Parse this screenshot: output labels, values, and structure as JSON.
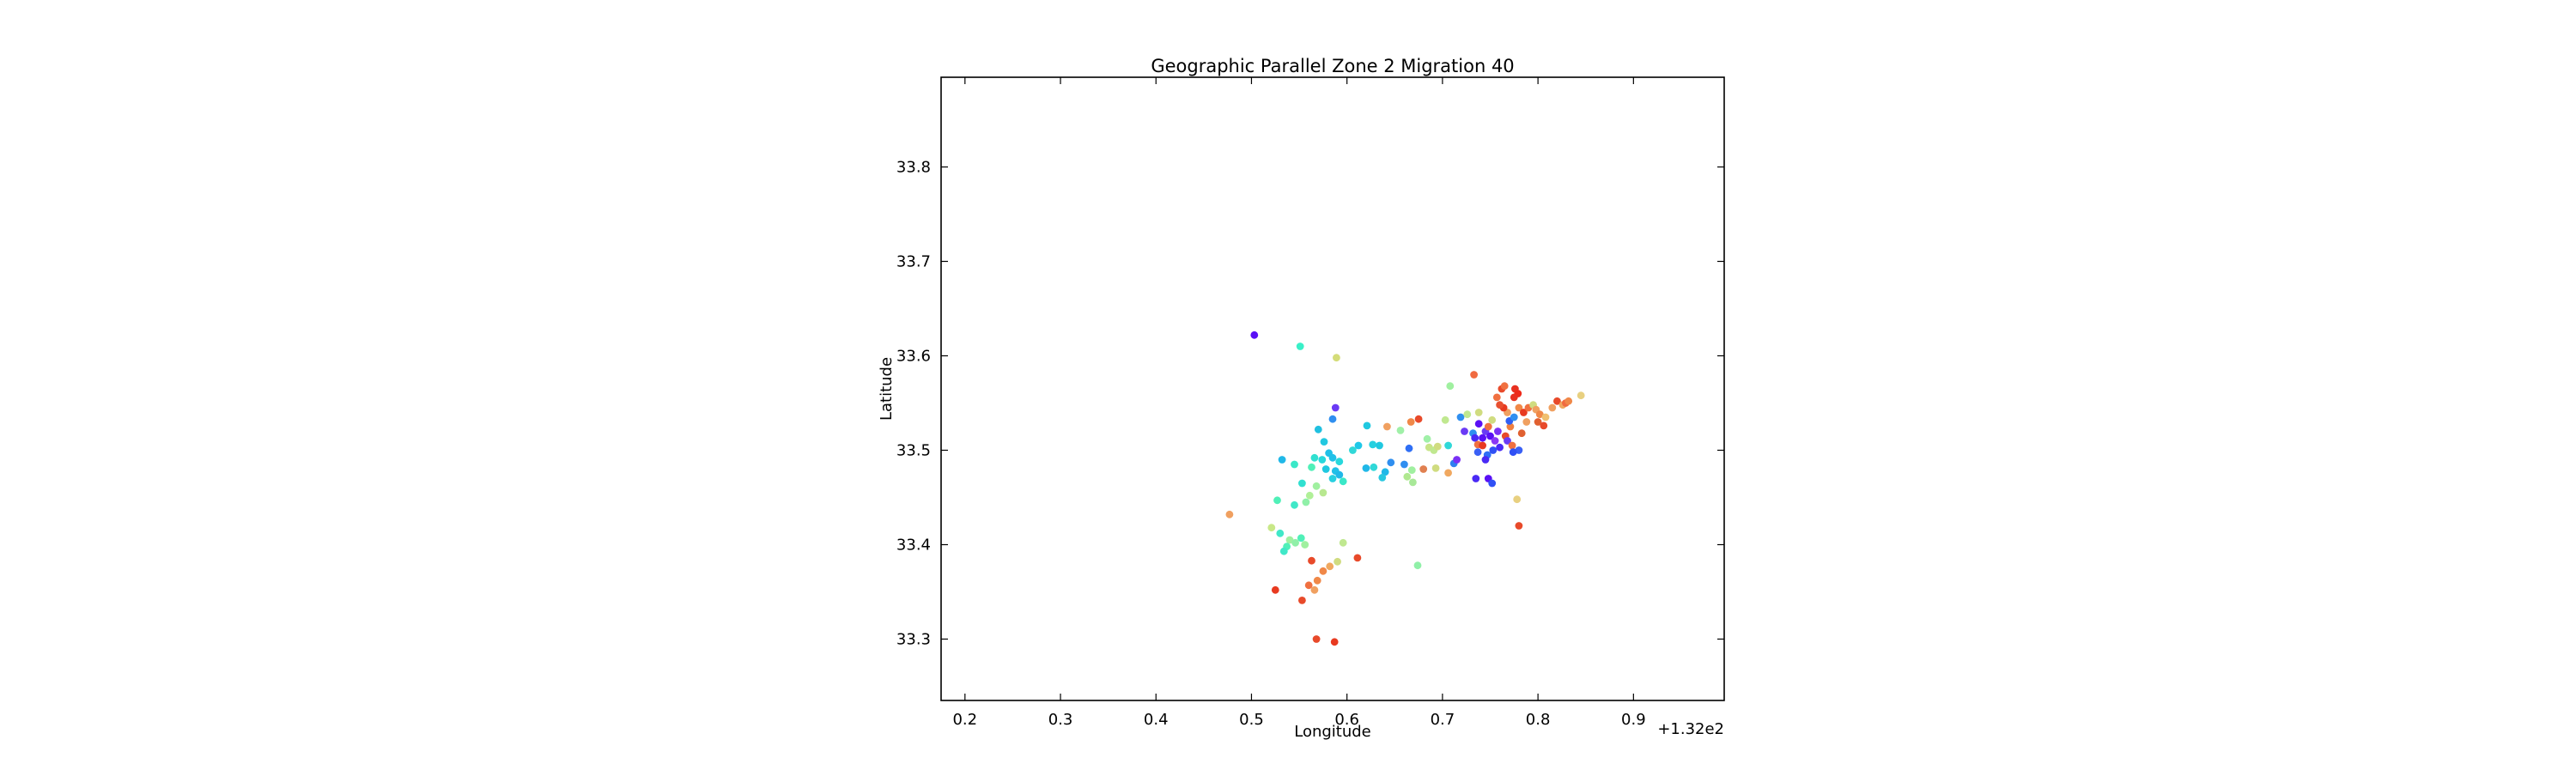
{
  "chart_data": {
    "type": "scatter",
    "title": "Geographic Parallel Zone 2 Migration 40",
    "xlabel": "Longitude",
    "ylabel": "Latitude",
    "x_offset_label": "+1.32e2",
    "xlim": [
      0.175,
      0.995
    ],
    "ylim": [
      33.235,
      33.895
    ],
    "xticks": [
      0.2,
      0.3,
      0.4,
      0.5,
      0.6,
      0.7,
      0.8,
      0.9
    ],
    "xtick_labels": [
      "0.2",
      "0.3",
      "0.4",
      "0.5",
      "0.6",
      "0.7",
      "0.8",
      "0.9"
    ],
    "yticks": [
      33.3,
      33.4,
      33.5,
      33.6,
      33.7,
      33.8
    ],
    "ytick_labels": [
      "33.3",
      "33.4",
      "33.5",
      "33.6",
      "33.7",
      "33.8"
    ],
    "grid": false,
    "legend": null,
    "colormap": "rainbow",
    "points": [
      {
        "x": 0.503,
        "y": 33.622,
        "color": "#5a10f5"
      },
      {
        "x": 0.551,
        "y": 33.61,
        "color": "#3af0c8"
      },
      {
        "x": 0.589,
        "y": 33.598,
        "color": "#d4dc78"
      },
      {
        "x": 0.588,
        "y": 33.545,
        "color": "#6a3af5"
      },
      {
        "x": 0.585,
        "y": 33.533,
        "color": "#2f8ff0"
      },
      {
        "x": 0.621,
        "y": 33.526,
        "color": "#20c8e0"
      },
      {
        "x": 0.642,
        "y": 33.525,
        "color": "#f0a060"
      },
      {
        "x": 0.656,
        "y": 33.521,
        "color": "#a0f0a8"
      },
      {
        "x": 0.667,
        "y": 33.53,
        "color": "#f08848"
      },
      {
        "x": 0.675,
        "y": 33.533,
        "color": "#e84a2a"
      },
      {
        "x": 0.57,
        "y": 33.522,
        "color": "#20c0e0"
      },
      {
        "x": 0.612,
        "y": 33.505,
        "color": "#1ec8e8"
      },
      {
        "x": 0.627,
        "y": 33.506,
        "color": "#26d0e0"
      },
      {
        "x": 0.634,
        "y": 33.505,
        "color": "#20c8e0"
      },
      {
        "x": 0.606,
        "y": 33.5,
        "color": "#30d8d8"
      },
      {
        "x": 0.576,
        "y": 33.509,
        "color": "#22c8e0"
      },
      {
        "x": 0.581,
        "y": 33.497,
        "color": "#20c0e8"
      },
      {
        "x": 0.566,
        "y": 33.492,
        "color": "#30e0d0"
      },
      {
        "x": 0.574,
        "y": 33.49,
        "color": "#28d8dc"
      },
      {
        "x": 0.585,
        "y": 33.492,
        "color": "#20c0e8"
      },
      {
        "x": 0.592,
        "y": 33.488,
        "color": "#28d8dc"
      },
      {
        "x": 0.532,
        "y": 33.49,
        "color": "#20b8e8"
      },
      {
        "x": 0.545,
        "y": 33.485,
        "color": "#3ae8c8"
      },
      {
        "x": 0.563,
        "y": 33.482,
        "color": "#50f0b8"
      },
      {
        "x": 0.578,
        "y": 33.48,
        "color": "#20c8e0"
      },
      {
        "x": 0.588,
        "y": 33.478,
        "color": "#20c0e8"
      },
      {
        "x": 0.592,
        "y": 33.474,
        "color": "#20b8e8"
      },
      {
        "x": 0.585,
        "y": 33.47,
        "color": "#28d0e0"
      },
      {
        "x": 0.596,
        "y": 33.467,
        "color": "#3ae8c8"
      },
      {
        "x": 0.553,
        "y": 33.465,
        "color": "#30e0d0"
      },
      {
        "x": 0.568,
        "y": 33.462,
        "color": "#a0f0a0"
      },
      {
        "x": 0.575,
        "y": 33.455,
        "color": "#b8e890"
      },
      {
        "x": 0.561,
        "y": 33.452,
        "color": "#b0f098"
      },
      {
        "x": 0.557,
        "y": 33.445,
        "color": "#90f0a8"
      },
      {
        "x": 0.545,
        "y": 33.442,
        "color": "#40e8c8"
      },
      {
        "x": 0.527,
        "y": 33.447,
        "color": "#50f0b8"
      },
      {
        "x": 0.62,
        "y": 33.481,
        "color": "#20b8e8"
      },
      {
        "x": 0.628,
        "y": 33.482,
        "color": "#30d8d8"
      },
      {
        "x": 0.64,
        "y": 33.477,
        "color": "#20b8e8"
      },
      {
        "x": 0.637,
        "y": 33.471,
        "color": "#28c8e0"
      },
      {
        "x": 0.646,
        "y": 33.487,
        "color": "#2f8ff0"
      },
      {
        "x": 0.665,
        "y": 33.502,
        "color": "#2f6ff5"
      },
      {
        "x": 0.66,
        "y": 33.485,
        "color": "#2f8ff0"
      },
      {
        "x": 0.668,
        "y": 33.479,
        "color": "#a0f0a0"
      },
      {
        "x": 0.663,
        "y": 33.472,
        "color": "#b0e890"
      },
      {
        "x": 0.669,
        "y": 33.466,
        "color": "#a8e898"
      },
      {
        "x": 0.68,
        "y": 33.48,
        "color": "#e08050"
      },
      {
        "x": 0.686,
        "y": 33.503,
        "color": "#c8e488"
      },
      {
        "x": 0.684,
        "y": 33.512,
        "color": "#a0f0a8"
      },
      {
        "x": 0.691,
        "y": 33.5,
        "color": "#c0e890"
      },
      {
        "x": 0.695,
        "y": 33.504,
        "color": "#d0dc80"
      },
      {
        "x": 0.706,
        "y": 33.505,
        "color": "#30d8d8"
      },
      {
        "x": 0.703,
        "y": 33.532,
        "color": "#c0e890"
      },
      {
        "x": 0.708,
        "y": 33.568,
        "color": "#a0f0a0"
      },
      {
        "x": 0.693,
        "y": 33.481,
        "color": "#d0dc80"
      },
      {
        "x": 0.706,
        "y": 33.476,
        "color": "#f0a860"
      },
      {
        "x": 0.712,
        "y": 33.486,
        "color": "#2f7ff0"
      },
      {
        "x": 0.715,
        "y": 33.49,
        "color": "#7a30f5"
      },
      {
        "x": 0.723,
        "y": 33.52,
        "color": "#6a3af5"
      },
      {
        "x": 0.719,
        "y": 33.535,
        "color": "#2f8ff0"
      },
      {
        "x": 0.726,
        "y": 33.538,
        "color": "#c0e890"
      },
      {
        "x": 0.733,
        "y": 33.58,
        "color": "#f06a40"
      },
      {
        "x": 0.738,
        "y": 33.54,
        "color": "#d0dc80"
      },
      {
        "x": 0.738,
        "y": 33.528,
        "color": "#5a10f5"
      },
      {
        "x": 0.732,
        "y": 33.518,
        "color": "#2f8ff0"
      },
      {
        "x": 0.734,
        "y": 33.513,
        "color": "#4a2af5"
      },
      {
        "x": 0.737,
        "y": 33.506,
        "color": "#f07040"
      },
      {
        "x": 0.742,
        "y": 33.505,
        "color": "#e83a20"
      },
      {
        "x": 0.742,
        "y": 33.513,
        "color": "#5a10f5"
      },
      {
        "x": 0.745,
        "y": 33.52,
        "color": "#6a3af5"
      },
      {
        "x": 0.748,
        "y": 33.525,
        "color": "#f07040"
      },
      {
        "x": 0.752,
        "y": 33.532,
        "color": "#d0dc80"
      },
      {
        "x": 0.75,
        "y": 33.515,
        "color": "#5a10f5"
      },
      {
        "x": 0.755,
        "y": 33.51,
        "color": "#8a38f5"
      },
      {
        "x": 0.758,
        "y": 33.52,
        "color": "#7a30f5"
      },
      {
        "x": 0.76,
        "y": 33.503,
        "color": "#4a2af5"
      },
      {
        "x": 0.753,
        "y": 33.5,
        "color": "#3050f5"
      },
      {
        "x": 0.747,
        "y": 33.495,
        "color": "#2f6ff5"
      },
      {
        "x": 0.745,
        "y": 33.49,
        "color": "#4a2af5"
      },
      {
        "x": 0.737,
        "y": 33.498,
        "color": "#3a60f5"
      },
      {
        "x": 0.748,
        "y": 33.47,
        "color": "#5a10f5"
      },
      {
        "x": 0.752,
        "y": 33.465,
        "color": "#3050f5"
      },
      {
        "x": 0.735,
        "y": 33.47,
        "color": "#4a2af5"
      },
      {
        "x": 0.766,
        "y": 33.515,
        "color": "#e84a2a"
      },
      {
        "x": 0.768,
        "y": 33.51,
        "color": "#6a3af5"
      },
      {
        "x": 0.771,
        "y": 33.525,
        "color": "#f08040"
      },
      {
        "x": 0.77,
        "y": 33.531,
        "color": "#3060f5"
      },
      {
        "x": 0.775,
        "y": 33.535,
        "color": "#2f8ff0"
      },
      {
        "x": 0.768,
        "y": 33.54,
        "color": "#f0a060"
      },
      {
        "x": 0.764,
        "y": 33.545,
        "color": "#e83a20"
      },
      {
        "x": 0.76,
        "y": 33.548,
        "color": "#e85030"
      },
      {
        "x": 0.757,
        "y": 33.556,
        "color": "#f07040"
      },
      {
        "x": 0.762,
        "y": 33.565,
        "color": "#e84a2a"
      },
      {
        "x": 0.765,
        "y": 33.568,
        "color": "#f07040"
      },
      {
        "x": 0.776,
        "y": 33.565,
        "color": "#e83020"
      },
      {
        "x": 0.779,
        "y": 33.56,
        "color": "#ee2a1a"
      },
      {
        "x": 0.775,
        "y": 33.556,
        "color": "#e83020"
      },
      {
        "x": 0.78,
        "y": 33.545,
        "color": "#f08848"
      },
      {
        "x": 0.785,
        "y": 33.54,
        "color": "#e83a20"
      },
      {
        "x": 0.788,
        "y": 33.53,
        "color": "#f0a060"
      },
      {
        "x": 0.783,
        "y": 33.518,
        "color": "#e06030"
      },
      {
        "x": 0.78,
        "y": 33.5,
        "color": "#3a60f5"
      },
      {
        "x": 0.773,
        "y": 33.505,
        "color": "#f07040"
      },
      {
        "x": 0.774,
        "y": 33.498,
        "color": "#3050f5"
      },
      {
        "x": 0.79,
        "y": 33.545,
        "color": "#f07040"
      },
      {
        "x": 0.795,
        "y": 33.548,
        "color": "#d0dc80"
      },
      {
        "x": 0.798,
        "y": 33.543,
        "color": "#f0a060"
      },
      {
        "x": 0.802,
        "y": 33.538,
        "color": "#f08848"
      },
      {
        "x": 0.8,
        "y": 33.53,
        "color": "#e06030"
      },
      {
        "x": 0.806,
        "y": 33.526,
        "color": "#e84a2a"
      },
      {
        "x": 0.808,
        "y": 33.535,
        "color": "#f0c070"
      },
      {
        "x": 0.815,
        "y": 33.545,
        "color": "#f0a060"
      },
      {
        "x": 0.82,
        "y": 33.552,
        "color": "#e84a2a"
      },
      {
        "x": 0.826,
        "y": 33.548,
        "color": "#f0a860"
      },
      {
        "x": 0.829,
        "y": 33.55,
        "color": "#f06a40"
      },
      {
        "x": 0.832,
        "y": 33.552,
        "color": "#f08848"
      },
      {
        "x": 0.845,
        "y": 33.558,
        "color": "#e8d080"
      },
      {
        "x": 0.778,
        "y": 33.448,
        "color": "#e8d080"
      },
      {
        "x": 0.78,
        "y": 33.42,
        "color": "#e84a2a"
      },
      {
        "x": 0.477,
        "y": 33.432,
        "color": "#f0a060"
      },
      {
        "x": 0.521,
        "y": 33.418,
        "color": "#c8e888"
      },
      {
        "x": 0.53,
        "y": 33.412,
        "color": "#40e8c8"
      },
      {
        "x": 0.54,
        "y": 33.405,
        "color": "#a0f0a0"
      },
      {
        "x": 0.546,
        "y": 33.402,
        "color": "#90f0a8"
      },
      {
        "x": 0.552,
        "y": 33.407,
        "color": "#50f0b8"
      },
      {
        "x": 0.556,
        "y": 33.4,
        "color": "#a0f0a0"
      },
      {
        "x": 0.537,
        "y": 33.398,
        "color": "#50f0b8"
      },
      {
        "x": 0.534,
        "y": 33.393,
        "color": "#40e8c8"
      },
      {
        "x": 0.596,
        "y": 33.402,
        "color": "#c0e890"
      },
      {
        "x": 0.59,
        "y": 33.382,
        "color": "#d0dc80"
      },
      {
        "x": 0.582,
        "y": 33.377,
        "color": "#f0a860"
      },
      {
        "x": 0.611,
        "y": 33.386,
        "color": "#e84a2a"
      },
      {
        "x": 0.563,
        "y": 33.383,
        "color": "#e84a2a"
      },
      {
        "x": 0.575,
        "y": 33.372,
        "color": "#f08848"
      },
      {
        "x": 0.569,
        "y": 33.362,
        "color": "#f08848"
      },
      {
        "x": 0.56,
        "y": 33.357,
        "color": "#f07040"
      },
      {
        "x": 0.566,
        "y": 33.352,
        "color": "#f0a060"
      },
      {
        "x": 0.525,
        "y": 33.352,
        "color": "#e83a20"
      },
      {
        "x": 0.553,
        "y": 33.341,
        "color": "#e84a2a"
      },
      {
        "x": 0.674,
        "y": 33.378,
        "color": "#90f0a8"
      },
      {
        "x": 0.568,
        "y": 33.3,
        "color": "#e84a2a"
      },
      {
        "x": 0.587,
        "y": 33.297,
        "color": "#e83a20"
      }
    ]
  }
}
